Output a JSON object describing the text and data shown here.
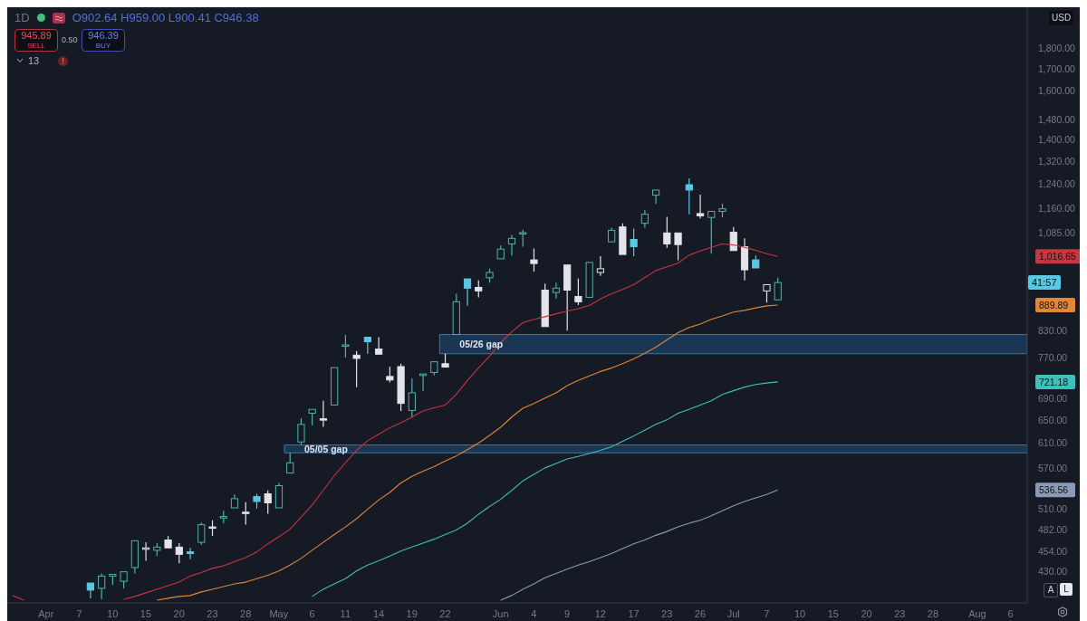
{
  "chart_data": {
    "type": "candlestick",
    "title": "1D",
    "log": true,
    "categories": [
      null,
      null,
      null,
      "Apr",
      null,
      null,
      "7",
      null,
      null,
      "10",
      null,
      null,
      "15",
      null,
      null,
      "20",
      null,
      null,
      "23",
      null,
      null,
      "28",
      null,
      null,
      "May",
      null,
      null,
      "6",
      null,
      null,
      "11",
      null,
      null,
      "14",
      null,
      null,
      "19",
      null,
      null,
      "22",
      null,
      null,
      null,
      null,
      "Jun",
      null,
      null,
      "4",
      null,
      null,
      "9",
      null,
      null,
      "12",
      null,
      null,
      "17",
      null,
      null,
      "23",
      null,
      null,
      "26",
      null,
      null,
      "Jul",
      null,
      null,
      "7",
      null,
      null,
      "10",
      null,
      null,
      "15",
      null,
      null,
      "20",
      null,
      null,
      "23",
      null,
      null,
      "28",
      null,
      null,
      null,
      "Aug",
      null,
      null,
      "6",
      null
    ],
    "ohlc": [
      null,
      null,
      null,
      null,
      null,
      null,
      null,
      [
        416,
        418,
        399,
        408
      ],
      [
        410,
        427,
        398,
        424
      ],
      [
        424,
        428,
        414,
        426
      ],
      [
        418,
        430,
        410,
        429
      ],
      [
        434,
        468,
        427,
        467
      ],
      [
        457,
        465,
        442,
        458
      ],
      [
        455,
        464,
        448,
        459
      ],
      [
        468,
        473,
        456,
        458
      ],
      [
        459,
        464,
        439,
        450
      ],
      [
        453,
        458,
        444,
        451
      ],
      [
        465,
        491,
        462,
        488
      ],
      [
        485,
        494,
        473,
        484
      ],
      [
        497,
        507,
        490,
        499
      ],
      [
        511,
        530,
        511,
        524
      ],
      [
        505,
        519,
        488,
        504
      ],
      [
        527,
        531,
        510,
        520
      ],
      [
        531,
        536,
        503,
        518
      ],
      [
        511,
        547,
        511,
        543
      ],
      [
        562,
        594,
        560,
        578
      ],
      [
        612,
        653,
        607,
        642
      ],
      [
        662,
        670,
        640,
        669
      ],
      [
        652,
        685,
        638,
        650
      ],
      [
        677,
        752,
        676,
        750
      ],
      [
        795,
        820,
        771,
        798
      ],
      [
        776,
        785,
        711,
        769
      ],
      [
        815,
        815,
        779,
        805
      ],
      [
        789,
        815,
        778,
        778
      ],
      [
        732,
        752,
        720,
        725
      ],
      [
        752,
        758,
        666,
        680
      ],
      [
        667,
        728,
        654,
        700
      ],
      [
        734,
        738,
        704,
        737
      ],
      [
        740,
        765,
        734,
        762
      ],
      [
        758,
        779,
        750,
        751
      ],
      [
        821,
        918,
        821,
        898
      ],
      [
        956,
        956,
        888,
        932
      ],
      [
        934,
        952,
        909,
        925
      ],
      [
        959,
        983,
        946,
        973
      ],
      [
        1010,
        1047,
        1008,
        1037
      ],
      [
        1052,
        1078,
        1019,
        1068
      ],
      [
        1083,
        1094,
        1044,
        1085
      ],
      [
        1007,
        1039,
        975,
        997
      ],
      [
        927,
        944,
        839,
        839
      ],
      [
        921,
        946,
        906,
        932
      ],
      [
        993,
        993,
        830,
        927
      ],
      [
        911,
        957,
        890,
        898
      ],
      [
        909,
        1000,
        905,
        1000
      ],
      [
        973,
        1017,
        964,
        983
      ],
      [
        1058,
        1100,
        1055,
        1092
      ],
      [
        1102,
        1113,
        1022,
        1022
      ],
      [
        1065,
        1097,
        1017,
        1044
      ],
      [
        1113,
        1155,
        1100,
        1141
      ],
      [
        1202,
        1220,
        1174,
        1219
      ],
      [
        1084,
        1133,
        1041,
        1052
      ],
      [
        1084,
        1084,
        1006,
        1050
      ],
      [
        1237,
        1259,
        1141,
        1219
      ],
      [
        1143,
        1204,
        1128,
        1136
      ],
      [
        1131,
        1150,
        1024,
        1150
      ],
      [
        1150,
        1174,
        1131,
        1158
      ],
      [
        1086,
        1102,
        1033,
        1033
      ],
      [
        1044,
        1068,
        952,
        980
      ],
      [
        1007,
        1019,
        985,
        985
      ],
      [
        925,
        945,
        896,
        941
      ],
      [
        902.64,
        959,
        900.41,
        946.38
      ],
      null,
      null,
      null,
      null,
      null,
      null,
      null,
      null,
      null,
      null,
      null,
      null,
      null,
      null,
      null,
      null,
      null,
      null,
      null,
      null,
      null,
      null
    ],
    "colors": [
      null,
      null,
      null,
      null,
      null,
      null,
      null,
      "#5bc8e3",
      "#4fb3ae",
      "#4fb3ae",
      "#4fb3ae",
      "#4fb3ae",
      "#e3e4ea",
      "#4fb3ae",
      "#e3e4ea",
      "#e3e4ea",
      "#5bc8e3",
      "#4fb3ae",
      "#e3e4ea",
      "#4fb3ae",
      "#4fb3ae",
      "#e3e4ea",
      "#5bc8e3",
      "#e3e4ea",
      "#4fb3ae",
      "#4fb3ae",
      "#4fb3ae",
      "#4fb3ae",
      "#e3e4ea",
      "#4fb3ae",
      "#4fb3ae",
      "#e3e4ea",
      "#5bc8e3",
      "#e3e4ea",
      "#e3e4ea",
      "#e3e4ea",
      "#4fb3ae",
      "#4fb3ae",
      "#4fb3ae",
      "#e3e4ea",
      "#4fb3ae",
      "#5bc8e3",
      "#e3e4ea",
      "#4fb3ae",
      "#4fb3ae",
      "#4fb3ae",
      "#4fb3ae",
      "#e3e4ea",
      "#e3e4ea",
      "#4fb3ae",
      "#e3e4ea",
      "#e3e4ea",
      "#4fb3ae",
      "#e3e4ea",
      "#4fb3ae",
      "#e3e4ea",
      "#5bc8e3",
      "#4fb3ae",
      "#4fb3ae",
      "#e3e4ea",
      "#e3e4ea",
      "#5bc8e3",
      "#e3e4ea",
      "#4fb3ae",
      "#4fb3ae",
      "#e3e4ea",
      "#e3e4ea",
      "#5bc8e3",
      "#e3e4ea",
      "#4fb3ae",
      null,
      null,
      null,
      null,
      null,
      null,
      null,
      null,
      null,
      null,
      null,
      null,
      null,
      null,
      null,
      null,
      null,
      null,
      null,
      null,
      null,
      null
    ],
    "series": [
      {
        "type": "line",
        "color": "#c8343f",
        "values": [
          402,
          397,
          null,
          null,
          null,
          null,
          null,
          null,
          null,
          null,
          398,
          401,
          405,
          409,
          413,
          417,
          424,
          428,
          433,
          436,
          441,
          446,
          453,
          463,
          472,
          482,
          498,
          515,
          536,
          558,
          578,
          598,
          614,
          625,
          636,
          645,
          655,
          666,
          672,
          677,
          697,
          724,
          749,
          774,
          803,
          827,
          848,
          856,
          862,
          869,
          875,
          881,
          889,
          905,
          918,
          929,
          941,
          959,
          978,
          988,
          998,
          1020,
          1032,
          1042,
          1052,
          1049,
          1042,
          1034,
          1024,
          1016.65,
          null,
          null,
          null,
          null,
          null,
          null,
          null,
          null,
          null,
          null,
          null,
          null,
          null,
          null,
          null,
          null,
          null,
          null,
          null,
          null,
          null,
          null
        ]
      },
      {
        "type": "line",
        "color": "#e0873a",
        "values": [
          null,
          null,
          null,
          null,
          null,
          null,
          null,
          null,
          null,
          null,
          null,
          null,
          null,
          397,
          399,
          401,
          402,
          406,
          409,
          412,
          415,
          417,
          421,
          425,
          430,
          437,
          445,
          455,
          465,
          475,
          485,
          496,
          509,
          522,
          533,
          547,
          557,
          565,
          572,
          581,
          589,
          599,
          610,
          623,
          637,
          655,
          671,
          680,
          690,
          700,
          714,
          724,
          733,
          742,
          749,
          758,
          768,
          780,
          793,
          809,
          825,
          837,
          845,
          856,
          864,
          873,
          877,
          883,
          888,
          889.89,
          null,
          null,
          null,
          null,
          null,
          null,
          null,
          null,
          null,
          null,
          null,
          null,
          null,
          null,
          null,
          null,
          null,
          null,
          null,
          null,
          null,
          null
        ]
      },
      {
        "type": "line",
        "color": "#3fbfb8",
        "values": [
          null,
          null,
          null,
          null,
          null,
          null,
          null,
          null,
          null,
          null,
          null,
          null,
          null,
          null,
          null,
          null,
          null,
          null,
          null,
          null,
          null,
          null,
          null,
          null,
          null,
          null,
          null,
          401,
          409,
          415,
          421,
          430,
          437,
          442,
          448,
          454,
          459,
          464,
          469,
          475,
          481,
          490,
          502,
          513,
          523,
          536,
          550,
          560,
          570,
          577,
          584,
          588,
          593,
          598,
          604,
          613,
          622,
          632,
          642,
          650,
          662,
          669,
          677,
          685,
          697,
          704,
          711,
          716,
          719,
          721.18,
          null,
          null,
          null,
          null,
          null,
          null,
          null,
          null,
          null,
          null,
          null,
          null,
          null,
          null,
          null,
          null,
          null,
          null,
          null,
          null,
          null,
          null
        ]
      },
      {
        "type": "line",
        "color": "#8a9bb8",
        "values": [
          null,
          null,
          null,
          null,
          null,
          null,
          null,
          null,
          null,
          null,
          null,
          null,
          null,
          null,
          null,
          null,
          null,
          null,
          null,
          null,
          null,
          null,
          null,
          null,
          null,
          null,
          null,
          null,
          null,
          null,
          null,
          null,
          null,
          null,
          null,
          null,
          null,
          null,
          null,
          null,
          null,
          null,
          null,
          null,
          397,
          402,
          409,
          415,
          422,
          427,
          432,
          437,
          441,
          446,
          451,
          457,
          463,
          468,
          474,
          479,
          485,
          490,
          494,
          500,
          507,
          514,
          520,
          525,
          530,
          536.56,
          null,
          null,
          null,
          null,
          null,
          null,
          null,
          null,
          null,
          null,
          null,
          null,
          null,
          null,
          null,
          null,
          null,
          null,
          null,
          null,
          null,
          null
        ]
      }
    ],
    "ylim": [
      394,
      2010
    ],
    "yticks": [
      {
        "value": 430,
        "label": "430.00"
      },
      {
        "value": 454,
        "label": "454.00"
      },
      {
        "value": 482,
        "label": "482.00"
      },
      {
        "value": 510,
        "label": "510.00"
      },
      {
        "value": 570,
        "label": "570.00"
      },
      {
        "value": 610,
        "label": "610.00"
      },
      {
        "value": 650,
        "label": "650.00"
      },
      {
        "value": 690,
        "label": "690.00"
      },
      {
        "value": 770,
        "label": "770.00"
      },
      {
        "value": 830,
        "label": "830.00"
      },
      {
        "value": 889.89,
        "label": "889.89"
      },
      {
        "value": 1016.65,
        "label": "1,016.65"
      },
      {
        "value": 721.18,
        "label": "721.18"
      },
      {
        "value": 536.56,
        "label": "536.56"
      },
      {
        "value": 1085,
        "label": "1,085.00"
      },
      {
        "value": 1160,
        "label": "1,160.00"
      },
      {
        "value": 1240,
        "label": "1,240.00"
      },
      {
        "value": 1320,
        "label": "1,320.00"
      },
      {
        "value": 1400,
        "label": "1,400.00"
      },
      {
        "value": 1480,
        "label": "1,480.00"
      },
      {
        "value": 1600,
        "label": "1,600.00"
      },
      {
        "value": 1700,
        "label": "1,700.00"
      },
      {
        "value": 1800,
        "label": "1,800.00"
      }
    ],
    "bands": [
      {
        "axis": "y",
        "from": 594,
        "to": 607,
        "label": "05/05 gap",
        "color": "#1f4f78"
      },
      {
        "axis": "y",
        "from": 779,
        "to": 821,
        "label": "05/26 gap",
        "color": "#1f4f78"
      }
    ],
    "annotations": [
      "O902.64 H959.00 L900.41 C946.38",
      "945.89",
      "SELL",
      "0.50",
      "946.39",
      "BUY",
      "13",
      "USD",
      "A",
      "L",
      {
        "text": "41:57",
        "y": 946.38
      }
    ]
  }
}
